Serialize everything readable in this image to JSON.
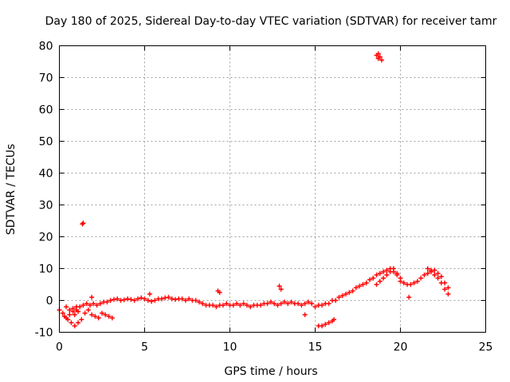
{
  "chart_data": {
    "type": "scatter",
    "title": "Day 180 of 2025, Sidereal Day-to-day VTEC variation (SDTVAR) for receiver tamr",
    "xlabel": "GPS time / hours",
    "ylabel": "SDTVAR / TECUs",
    "xlim": [
      0,
      25
    ],
    "ylim": [
      -10,
      80
    ],
    "xticks": [
      "0",
      "5",
      "10",
      "15",
      "20",
      "25"
    ],
    "yticks": [
      "-10",
      "0",
      "10",
      "20",
      "30",
      "40",
      "50",
      "60",
      "70",
      "80"
    ],
    "grid": true,
    "marker": "+",
    "color": "#ff0000",
    "series": [
      {
        "name": "SDTVAR",
        "x": [
          0.0,
          0.2,
          0.4,
          0.6,
          0.8,
          1.0,
          1.2,
          1.4,
          1.6,
          1.8,
          2.0,
          2.2,
          2.4,
          2.6,
          2.8,
          3.0,
          3.2,
          3.4,
          3.6,
          3.8,
          4.0,
          4.2,
          4.4,
          4.6,
          4.8,
          5.0,
          5.2,
          5.4,
          5.6,
          5.8,
          6.0,
          6.2,
          6.4,
          6.6,
          6.8,
          7.0,
          7.2,
          7.4,
          7.6,
          7.8,
          8.0,
          8.2,
          8.4,
          8.6,
          8.8,
          9.0,
          9.2,
          9.4,
          9.6,
          9.8,
          10.0,
          10.2,
          10.4,
          10.6,
          10.8,
          11.0,
          11.2,
          11.4,
          11.6,
          11.8,
          12.0,
          12.2,
          12.4,
          12.6,
          12.8,
          13.0,
          13.2,
          13.4,
          13.6,
          13.8,
          14.0,
          14.2,
          14.4,
          14.6,
          14.8,
          15.0,
          15.2,
          15.4,
          15.6,
          15.8,
          16.0,
          16.2,
          16.4,
          16.6,
          16.8,
          17.0,
          17.2,
          17.4,
          17.6,
          17.8,
          18.0,
          18.2,
          18.4,
          18.6,
          18.8,
          19.0,
          19.2,
          19.4,
          19.6,
          19.8,
          20.0,
          20.2,
          20.4,
          20.6,
          20.8,
          21.0,
          21.2,
          21.4,
          21.6,
          21.8,
          22.0,
          22.2,
          22.4,
          22.6,
          22.8,
          0.3,
          0.5,
          0.7,
          0.9,
          1.1,
          1.3,
          1.5,
          1.7,
          1.9,
          2.1,
          2.3,
          2.5,
          2.7,
          2.9,
          3.1,
          0.4,
          0.6,
          0.8,
          1.0,
          0.9,
          1.1,
          15.2,
          15.4,
          15.6,
          15.8,
          16.0,
          16.1,
          18.6,
          18.8,
          19.0,
          19.2,
          19.4,
          19.6,
          19.8,
          20.0,
          21.6,
          21.8,
          22.0,
          22.2,
          22.4,
          22.6,
          22.8,
          1.35,
          1.4,
          18.6,
          18.7,
          18.8,
          18.7,
          18.9,
          9.3,
          9.4,
          12.9,
          13.0,
          14.4,
          20.5,
          5.3,
          1.9
        ],
        "y": [
          -3.0,
          -4.0,
          -5.5,
          -4.5,
          -3.5,
          -3.0,
          -2.0,
          -1.5,
          -1.0,
          -1.5,
          -1.0,
          -1.5,
          -1.0,
          -0.5,
          -0.5,
          0.0,
          0.3,
          0.5,
          0.0,
          0.2,
          0.5,
          0.3,
          0.0,
          0.5,
          0.8,
          0.5,
          0.0,
          -0.3,
          0.0,
          0.5,
          0.5,
          0.8,
          1.0,
          0.5,
          0.3,
          0.5,
          0.5,
          0.0,
          0.5,
          0.0,
          0.0,
          -0.5,
          -1.0,
          -1.5,
          -1.5,
          -1.5,
          -2.0,
          -1.5,
          -1.5,
          -1.0,
          -1.5,
          -1.5,
          -1.0,
          -1.5,
          -1.0,
          -1.5,
          -2.0,
          -1.5,
          -1.5,
          -1.5,
          -1.0,
          -1.0,
          -0.5,
          -1.0,
          -1.5,
          -1.0,
          -0.5,
          -1.0,
          -0.5,
          -1.0,
          -1.0,
          -1.5,
          -1.0,
          -0.5,
          -1.0,
          -2.0,
          -1.5,
          -1.5,
          -1.0,
          -1.0,
          0.0,
          0.0,
          1.0,
          1.5,
          2.0,
          2.5,
          3.0,
          4.0,
          4.5,
          5.0,
          5.5,
          6.5,
          7.0,
          8.0,
          8.5,
          9.0,
          9.5,
          10.0,
          9.0,
          8.0,
          6.0,
          5.5,
          5.0,
          5.0,
          5.5,
          6.0,
          7.0,
          8.0,
          8.5,
          9.0,
          9.5,
          8.5,
          7.5,
          5.5,
          4.0,
          -5.0,
          -6.0,
          -7.0,
          -8.0,
          -7.0,
          -6.0,
          -4.0,
          -3.0,
          -4.5,
          -5.0,
          -5.5,
          -4.0,
          -4.5,
          -5.0,
          -5.5,
          -2.0,
          -3.0,
          -2.5,
          -2.0,
          -4.5,
          -3.5,
          -8.0,
          -8.0,
          -7.5,
          -7.0,
          -6.5,
          -6.0,
          5.0,
          6.0,
          7.0,
          8.0,
          9.0,
          10.0,
          8.5,
          7.0,
          10.0,
          9.5,
          8.0,
          7.0,
          5.5,
          3.5,
          2.0,
          24.0,
          24.3,
          77.0,
          77.5,
          76.5,
          76.0,
          75.5,
          3.0,
          2.5,
          4.5,
          3.5,
          -4.5,
          1.0,
          2.0,
          1.0
        ]
      }
    ]
  }
}
